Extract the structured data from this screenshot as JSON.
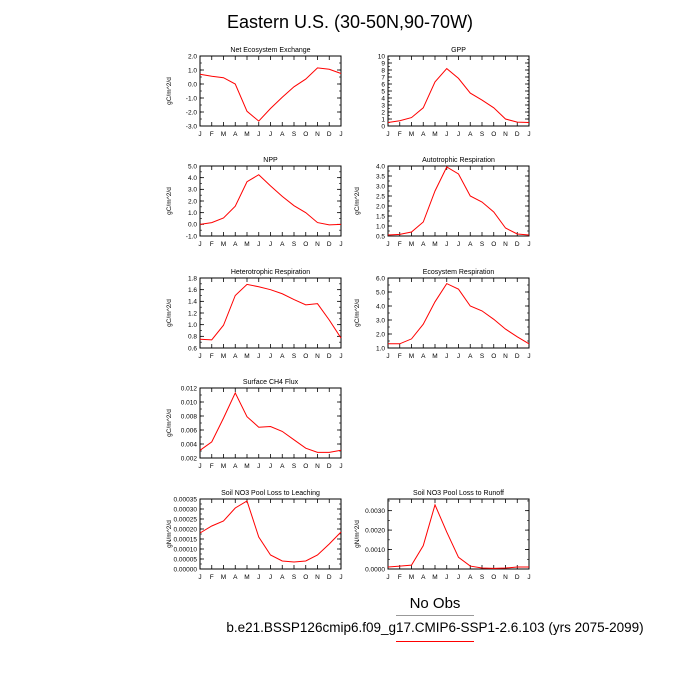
{
  "title": "Eastern U.S. (30-50N,90-70W)",
  "months": [
    "J",
    "F",
    "M",
    "A",
    "M",
    "J",
    "J",
    "A",
    "S",
    "O",
    "N",
    "D",
    "J"
  ],
  "line_color": "#ff0000",
  "legend": {
    "obs_label": "No Obs",
    "case_name": "b.e21.BSSP126cmip6.f09_g17.CMIP6-SSP1-2.6.103 (yrs 2075-2099)"
  },
  "chart_data": [
    {
      "type": "line",
      "title": "Net Ecosystem Exchange",
      "ylabel": "gC/m^2/d",
      "ylim": [
        -3.0,
        2.0
      ],
      "yticks": [
        -3.0,
        -2.0,
        -1.0,
        0.0,
        1.0,
        2.0
      ],
      "ytick_labels": [
        "-3.0",
        "-2.0",
        "-1.0",
        "0.0",
        "1.0",
        "2.0"
      ],
      "yminor_step": 0.5,
      "values": [
        0.7,
        0.55,
        0.45,
        0.0,
        -1.95,
        -2.65,
        -1.75,
        -0.95,
        -0.2,
        0.35,
        1.15,
        1.05,
        0.75
      ]
    },
    {
      "type": "line",
      "title": "GPP",
      "ylabel": "",
      "ylim": [
        0,
        10
      ],
      "yticks": [
        0,
        1,
        2,
        3,
        4,
        5,
        6,
        7,
        8,
        9,
        10
      ],
      "ytick_labels": [
        "0",
        "1",
        "2",
        "3",
        "4",
        "5",
        "6",
        "7",
        "8",
        "9",
        "10"
      ],
      "yminor_step": 0.5,
      "values": [
        0.5,
        0.75,
        1.2,
        2.6,
        6.3,
        8.2,
        6.8,
        4.7,
        3.7,
        2.6,
        1.0,
        0.55,
        0.5
      ]
    },
    {
      "type": "line",
      "title": "NPP",
      "ylabel": "gC/m^2/d",
      "ylim": [
        -1.0,
        5.0
      ],
      "yticks": [
        -1.0,
        0.0,
        1.0,
        2.0,
        3.0,
        4.0,
        5.0
      ],
      "ytick_labels": [
        "-1.0",
        "0.0",
        "1.0",
        "2.0",
        "3.0",
        "4.0",
        "5.0"
      ],
      "yminor_step": 0.5,
      "values": [
        0.0,
        0.15,
        0.55,
        1.55,
        3.65,
        4.25,
        3.3,
        2.4,
        1.6,
        1.0,
        0.15,
        -0.05,
        0.0
      ]
    },
    {
      "type": "line",
      "title": "Autotrophic Respiration",
      "ylabel": "gC/m^2/d",
      "ylim": [
        0.5,
        4.0
      ],
      "yticks": [
        0.5,
        1.0,
        1.5,
        2.0,
        2.5,
        3.0,
        3.5,
        4.0
      ],
      "ytick_labels": [
        "0.5",
        "1.0",
        "1.5",
        "2.0",
        "2.5",
        "3.0",
        "3.5",
        "4.0"
      ],
      "yminor_step": 0.25,
      "values": [
        0.55,
        0.58,
        0.7,
        1.2,
        2.75,
        3.95,
        3.6,
        2.5,
        2.2,
        1.7,
        0.9,
        0.6,
        0.55
      ]
    },
    {
      "type": "line",
      "title": "Heterotrophic Respiration",
      "ylabel": "gC/m^2/d",
      "ylim": [
        0.6,
        1.8
      ],
      "yticks": [
        0.6,
        0.8,
        1.0,
        1.2,
        1.4,
        1.6,
        1.8
      ],
      "ytick_labels": [
        "0.6",
        "0.8",
        "1.0",
        "1.2",
        "1.4",
        "1.6",
        "1.8"
      ],
      "yminor_step": 0.1,
      "values": [
        0.75,
        0.74,
        0.99,
        1.5,
        1.69,
        1.65,
        1.6,
        1.53,
        1.43,
        1.34,
        1.36,
        1.08,
        0.77
      ]
    },
    {
      "type": "line",
      "title": "Ecosystem Respiration",
      "ylabel": "gC/m^2/d",
      "ylim": [
        1.0,
        6.0
      ],
      "yticks": [
        1.0,
        2.0,
        3.0,
        4.0,
        5.0,
        6.0
      ],
      "ytick_labels": [
        "1.0",
        "2.0",
        "3.0",
        "4.0",
        "5.0",
        "6.0"
      ],
      "yminor_step": 0.5,
      "values": [
        1.3,
        1.3,
        1.65,
        2.7,
        4.3,
        5.6,
        5.2,
        4.0,
        3.65,
        3.05,
        2.35,
        1.8,
        1.3
      ]
    },
    {
      "type": "line",
      "title": "Surface CH4 Flux",
      "ylabel": "gC/m^2/d",
      "ylim": [
        0.002,
        0.012
      ],
      "yticks": [
        0.002,
        0.004,
        0.006,
        0.008,
        0.01,
        0.012
      ],
      "ytick_labels": [
        "0.002",
        "0.004",
        "0.006",
        "0.008",
        "0.010",
        "0.012"
      ],
      "yminor_step": 0.001,
      "values": [
        0.0031,
        0.0043,
        0.0077,
        0.0113,
        0.0079,
        0.0064,
        0.0065,
        0.0058,
        0.0046,
        0.0034,
        0.0028,
        0.0028,
        0.0031
      ]
    },
    {
      "type": "line",
      "title": "Soil NO3 Pool Loss to Leaching",
      "ylabel": "gN/m^2/d",
      "ylim": [
        0.0,
        0.00035
      ],
      "yticks": [
        0.0,
        5e-05,
        0.0001,
        0.00015,
        0.0002,
        0.00025,
        0.0003,
        0.00035
      ],
      "ytick_labels": [
        "0.00000",
        "0.00005",
        "0.00010",
        "0.00015",
        "0.00020",
        "0.00025",
        "0.00030",
        "0.00035"
      ],
      "yminor_step": 2.5e-05,
      "values": [
        0.00018,
        0.000215,
        0.00024,
        0.000305,
        0.00034,
        0.00016,
        7e-05,
        4e-05,
        3.5e-05,
        4e-05,
        7e-05,
        0.000125,
        0.000185
      ]
    },
    {
      "type": "line",
      "title": "Soil NO3 Pool Loss to Runoff",
      "ylabel": "gN/m^2/d",
      "ylim": [
        0.0,
        0.0036
      ],
      "yticks": [
        0.0,
        0.001,
        0.002,
        0.003
      ],
      "ytick_labels": [
        "0.0000",
        "0.0010",
        "0.0020",
        "0.0030"
      ],
      "yminor_step": 0.0005,
      "values": [
        0.0001,
        0.00015,
        0.0002,
        0.0012,
        0.0033,
        0.0019,
        0.0006,
        0.00015,
        5e-05,
        3e-05,
        5e-05,
        0.0001,
        0.0001
      ]
    }
  ]
}
